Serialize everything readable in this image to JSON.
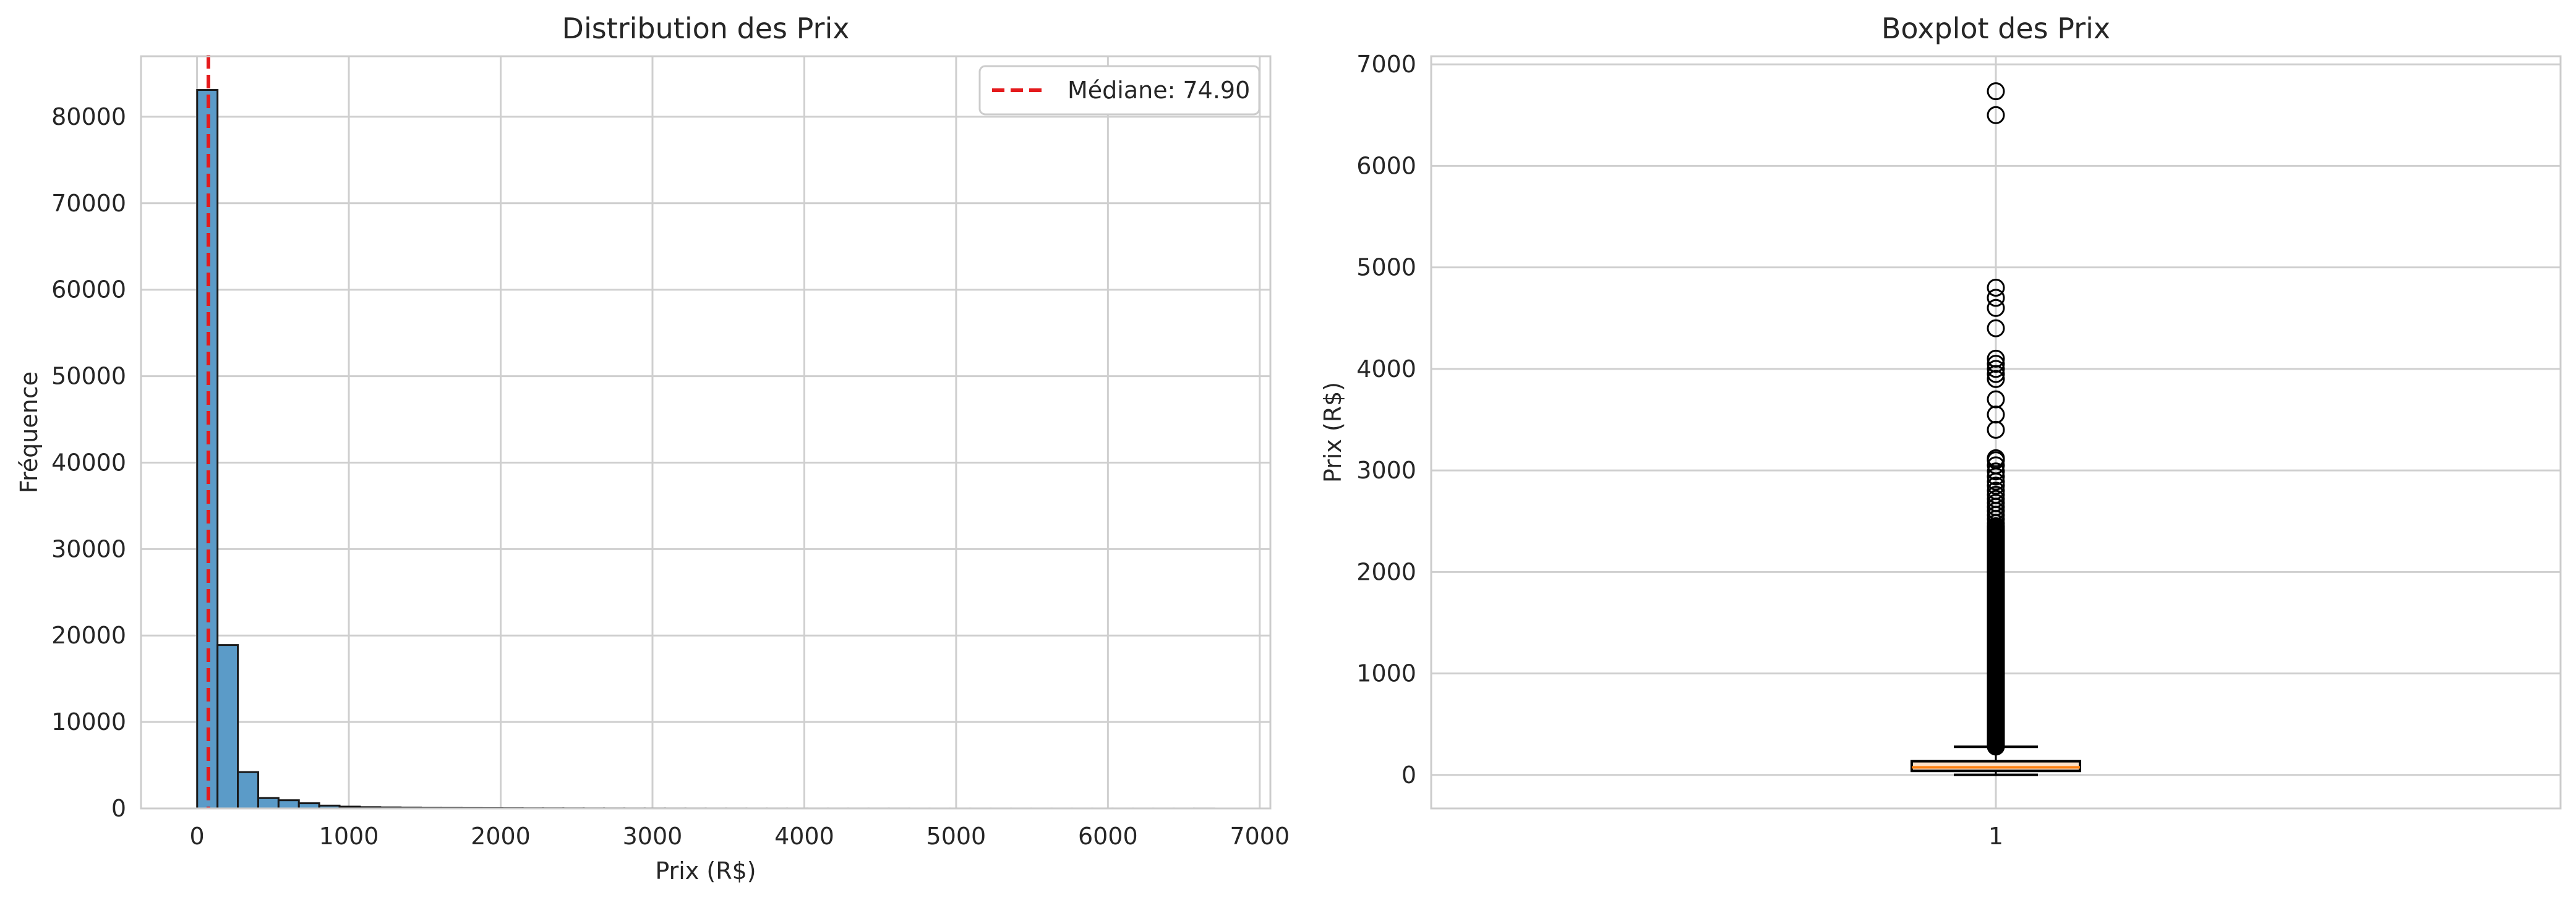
{
  "chart_data": [
    {
      "type": "bar",
      "title": "Distribution des Prix",
      "xlabel": "Prix (R$)",
      "ylabel": "Fréquence",
      "xlim": [
        -369,
        7070
      ],
      "ylim": [
        0,
        87000
      ],
      "xticks": [
        "0",
        "1000",
        "2000",
        "3000",
        "4000",
        "5000",
        "6000",
        "7000"
      ],
      "yticks": [
        "0",
        "10000",
        "20000",
        "30000",
        "40000",
        "50000",
        "60000",
        "70000",
        "80000"
      ],
      "grid": true,
      "legend_position": "top-right",
      "bin_width": 134,
      "bin_edges_start": 0.85,
      "values": [
        83100,
        18900,
        4200,
        1200,
        950,
        600,
        330,
        210,
        150,
        120,
        90,
        60,
        55,
        45,
        35,
        30,
        22,
        20,
        16,
        12,
        10,
        8,
        7,
        6,
        5,
        4,
        4,
        3,
        3,
        2,
        2,
        2,
        2,
        2,
        2,
        1,
        1,
        1,
        1,
        1,
        1,
        1,
        1,
        1,
        1,
        1,
        1,
        1,
        1,
        2
      ],
      "bar_color": "#5b9bc8",
      "median": {
        "value": 74.9,
        "label": "Médiane: 74.90",
        "color": "#e41a1c"
      }
    },
    {
      "type": "box",
      "title": "Boxplot des Prix",
      "ylabel": "Prix (R$)",
      "xticks": [
        "1"
      ],
      "yticks": [
        "0",
        "1000",
        "2000",
        "3000",
        "4000",
        "5000",
        "6000",
        "7000"
      ],
      "ylim": [
        -330,
        7080
      ],
      "grid": true,
      "box": {
        "whisker_low": 0.85,
        "q1": 39.9,
        "median": 74.9,
        "q3": 134.9,
        "whisker_high": 277.3
      },
      "median_color": "#ff7f0e",
      "box_fill": "#fde0c5",
      "outliers_dense_range": [
        280,
        2450
      ],
      "outliers": [
        2480,
        2520,
        2560,
        2600,
        2640,
        2680,
        2720,
        2760,
        2800,
        2850,
        2890,
        2940,
        2990,
        3050,
        3100,
        3120,
        3400,
        3550,
        3700,
        3900,
        3950,
        4000,
        4050,
        4100,
        4400,
        4600,
        4700,
        4800,
        6500,
        6735
      ]
    }
  ]
}
